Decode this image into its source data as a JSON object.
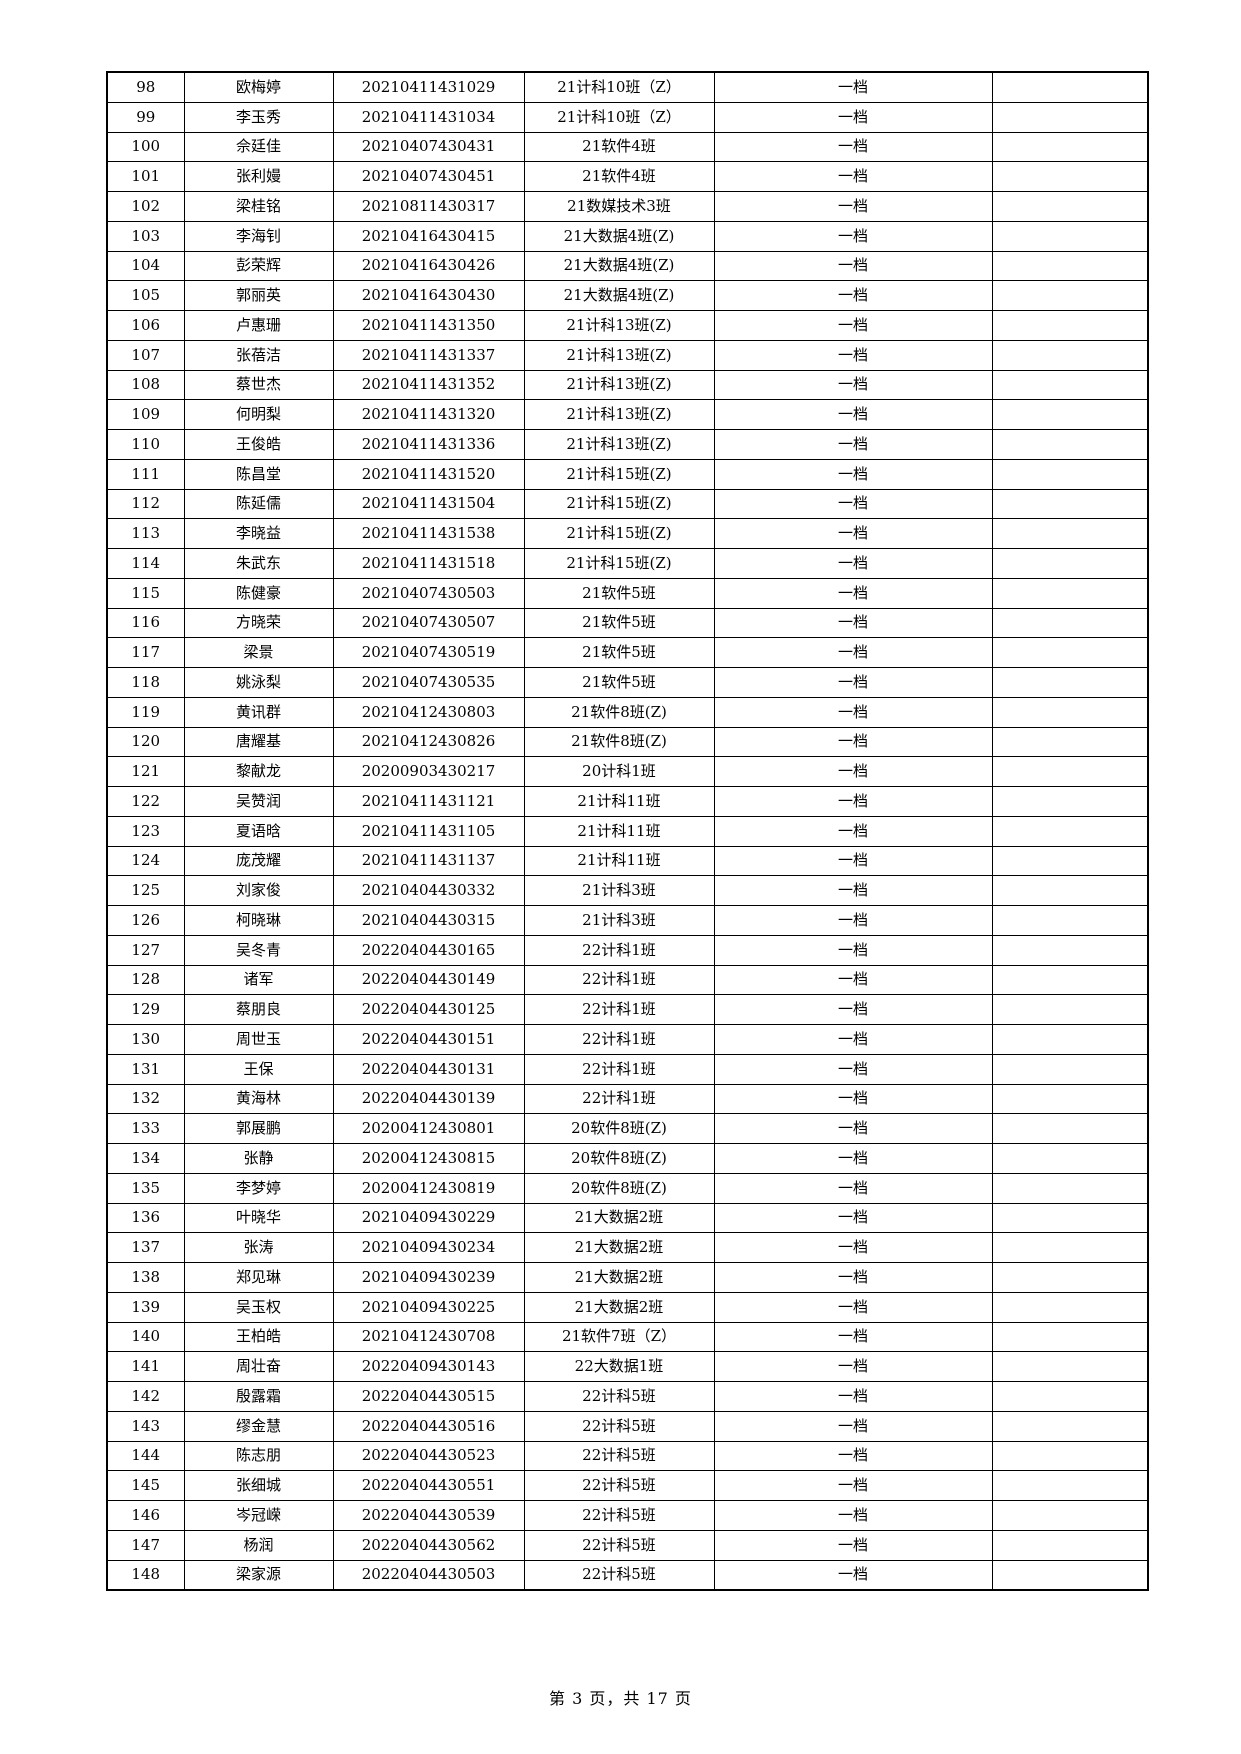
{
  "table": {
    "rows": [
      [
        "98",
        "欧梅婷",
        "20210411431029",
        "21计科10班（Z）",
        "一档",
        ""
      ],
      [
        "99",
        "李玉秀",
        "20210411431034",
        "21计科10班（Z）",
        "一档",
        ""
      ],
      [
        "100",
        "佘廷佳",
        "20210407430431",
        "21软件4班",
        "一档",
        ""
      ],
      [
        "101",
        "张利嫚",
        "20210407430451",
        "21软件4班",
        "一档",
        ""
      ],
      [
        "102",
        "梁桂铭",
        "20210811430317",
        "21数媒技术3班",
        "一档",
        ""
      ],
      [
        "103",
        "李海钊",
        "20210416430415",
        "21大数据4班(Z)",
        "一档",
        ""
      ],
      [
        "104",
        "彭荣辉",
        "20210416430426",
        "21大数据4班(Z)",
        "一档",
        ""
      ],
      [
        "105",
        "郭丽英",
        "20210416430430",
        "21大数据4班(Z)",
        "一档",
        ""
      ],
      [
        "106",
        "卢惠珊",
        "20210411431350",
        "21计科13班(Z)",
        "一档",
        ""
      ],
      [
        "107",
        "张蓓洁",
        "20210411431337",
        "21计科13班(Z)",
        "一档",
        ""
      ],
      [
        "108",
        "蔡世杰",
        "20210411431352",
        "21计科13班(Z)",
        "一档",
        ""
      ],
      [
        "109",
        "何明梨",
        "20210411431320",
        "21计科13班(Z)",
        "一档",
        ""
      ],
      [
        "110",
        "王俊皓",
        "20210411431336",
        "21计科13班(Z)",
        "一档",
        ""
      ],
      [
        "111",
        "陈昌堂",
        "20210411431520",
        "21计科15班(Z)",
        "一档",
        ""
      ],
      [
        "112",
        "陈延儒",
        "20210411431504",
        "21计科15班(Z)",
        "一档",
        ""
      ],
      [
        "113",
        "李晓益",
        "20210411431538",
        "21计科15班(Z)",
        "一档",
        ""
      ],
      [
        "114",
        "朱武东",
        "20210411431518",
        "21计科15班(Z)",
        "一档",
        ""
      ],
      [
        "115",
        "陈健豪",
        "20210407430503",
        "21软件5班",
        "一档",
        ""
      ],
      [
        "116",
        "方晓荣",
        "20210407430507",
        "21软件5班",
        "一档",
        ""
      ],
      [
        "117",
        "梁景",
        "20210407430519",
        "21软件5班",
        "一档",
        ""
      ],
      [
        "118",
        "姚泳梨",
        "20210407430535",
        "21软件5班",
        "一档",
        ""
      ],
      [
        "119",
        "黄讯群",
        "20210412430803",
        "21软件8班(Z)",
        "一档",
        ""
      ],
      [
        "120",
        "唐耀基",
        "20210412430826",
        "21软件8班(Z)",
        "一档",
        ""
      ],
      [
        "121",
        "黎献龙",
        "20200903430217",
        "20计科1班",
        "一档",
        ""
      ],
      [
        "122",
        "吴赞润",
        "20210411431121",
        "21计科11班",
        "一档",
        ""
      ],
      [
        "123",
        "夏语晗",
        "20210411431105",
        "21计科11班",
        "一档",
        ""
      ],
      [
        "124",
        "庞茂耀",
        "20210411431137",
        "21计科11班",
        "一档",
        ""
      ],
      [
        "125",
        "刘家俊",
        "20210404430332",
        "21计科3班",
        "一档",
        ""
      ],
      [
        "126",
        "柯晓琳",
        "20210404430315",
        "21计科3班",
        "一档",
        ""
      ],
      [
        "127",
        "吴冬青",
        "20220404430165",
        "22计科1班",
        "一档",
        ""
      ],
      [
        "128",
        "诸军",
        "20220404430149",
        "22计科1班",
        "一档",
        ""
      ],
      [
        "129",
        "蔡朋良",
        "20220404430125",
        "22计科1班",
        "一档",
        ""
      ],
      [
        "130",
        "周世玉",
        "20220404430151",
        "22计科1班",
        "一档",
        ""
      ],
      [
        "131",
        "王保",
        "20220404430131",
        "22计科1班",
        "一档",
        ""
      ],
      [
        "132",
        "黄海林",
        "20220404430139",
        "22计科1班",
        "一档",
        ""
      ],
      [
        "133",
        "郭展鹏",
        "20200412430801",
        "20软件8班(Z)",
        "一档",
        ""
      ],
      [
        "134",
        "张静",
        "20200412430815",
        "20软件8班(Z)",
        "一档",
        ""
      ],
      [
        "135",
        "李梦婷",
        "20200412430819",
        "20软件8班(Z)",
        "一档",
        ""
      ],
      [
        "136",
        "叶晓华",
        "20210409430229",
        "21大数据2班",
        "一档",
        ""
      ],
      [
        "137",
        "张涛",
        "20210409430234",
        "21大数据2班",
        "一档",
        ""
      ],
      [
        "138",
        "郑见琳",
        "20210409430239",
        "21大数据2班",
        "一档",
        ""
      ],
      [
        "139",
        "吴玉权",
        "20210409430225",
        "21大数据2班",
        "一档",
        ""
      ],
      [
        "140",
        "王柏皓",
        "20210412430708",
        "21软件7班（Z）",
        "一档",
        ""
      ],
      [
        "141",
        "周壮奋",
        "20220409430143",
        "22大数据1班",
        "一档",
        ""
      ],
      [
        "142",
        "殷露霜",
        "20220404430515",
        "22计科5班",
        "一档",
        ""
      ],
      [
        "143",
        "缪金慧",
        "20220404430516",
        "22计科5班",
        "一档",
        ""
      ],
      [
        "144",
        "陈志朋",
        "20220404430523",
        "22计科5班",
        "一档",
        ""
      ],
      [
        "145",
        "张细城",
        "20220404430551",
        "22计科5班",
        "一档",
        ""
      ],
      [
        "146",
        "岑冠嵘",
        "20220404430539",
        "22计科5班",
        "一档",
        ""
      ],
      [
        "147",
        "杨润",
        "20220404430562",
        "22计科5班",
        "一档",
        ""
      ],
      [
        "148",
        "梁家源",
        "20220404430503",
        "22计科5班",
        "一档",
        ""
      ]
    ]
  },
  "footer": {
    "page_label": "第 3 页，共 17 页"
  }
}
